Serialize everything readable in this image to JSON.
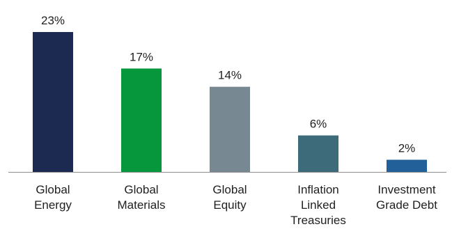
{
  "chart_data": {
    "type": "bar",
    "categories": [
      [
        "Global",
        "Energy"
      ],
      [
        "Global",
        "Materials"
      ],
      [
        "Global",
        "Equity"
      ],
      [
        "Inflation",
        "Linked",
        "Treasuries"
      ],
      [
        "Investment",
        "Grade Debt"
      ]
    ],
    "values": [
      23,
      17,
      14,
      6,
      2
    ],
    "data_labels": [
      "23%",
      "17%",
      "14%",
      "6%",
      "2%"
    ],
    "colors": [
      "#1c2a52",
      "#06963c",
      "#778892",
      "#3d6b7a",
      "#22609a"
    ],
    "axis_color": "#8c8c8c",
    "ylim": [
      0,
      23
    ],
    "grid": false,
    "legend": "none"
  }
}
